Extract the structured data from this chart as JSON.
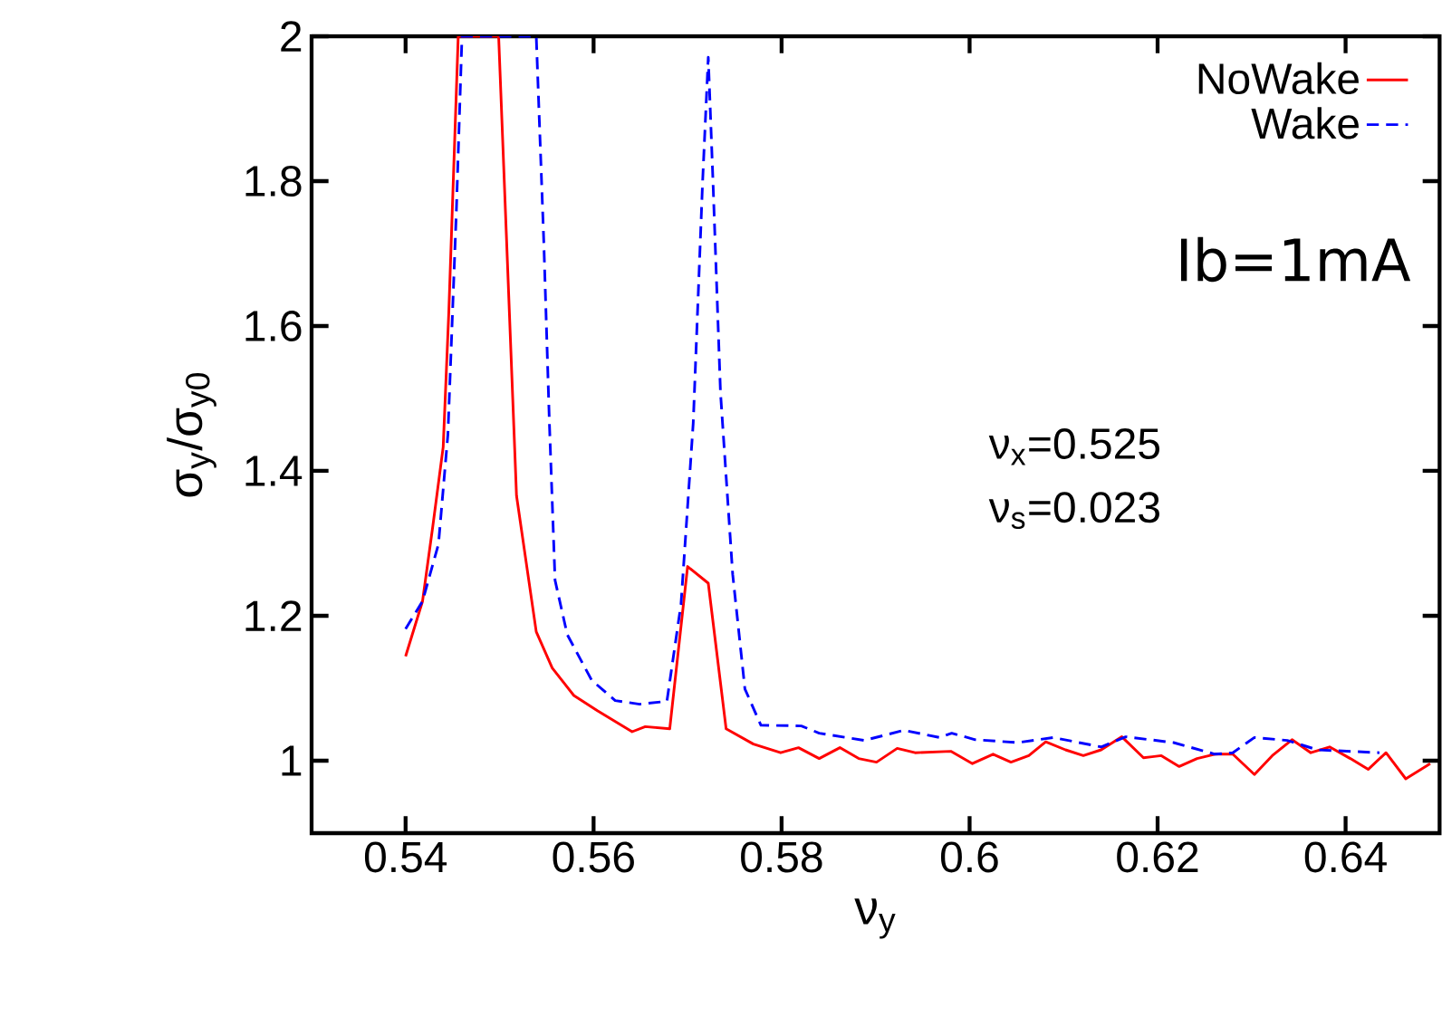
{
  "chart_data": {
    "type": "line",
    "xlabel": "ν$_{y}$",
    "ylabel": "σ$_{y}$/σ$_{y0}$",
    "xlim": [
      0.53,
      0.65
    ],
    "ylim": [
      0.9,
      2
    ],
    "xticks": [
      0.54,
      0.56,
      0.58,
      0.6,
      0.62,
      0.64
    ],
    "yticks": [
      1,
      1.2,
      1.4,
      1.6,
      1.8,
      2
    ],
    "legend": "top right",
    "grid": false,
    "marker": "none",
    "annotations": [
      "Ib=1mA",
      "ν$_{x}$=0.525",
      "ν$_{s}$=0.023"
    ],
    "series": [
      {
        "name": "NoWake",
        "color": "#ff0000",
        "line_style": "solid",
        "x": [
          0.54,
          0.5418,
          0.5429,
          0.544,
          0.5446,
          0.5456,
          0.5499,
          0.5518,
          0.5539,
          0.5556,
          0.5579,
          0.5604,
          0.5641,
          0.5655,
          0.5681,
          0.57,
          0.5722,
          0.5741,
          0.577,
          0.5799,
          0.5818,
          0.584,
          0.5862,
          0.5882,
          0.5901,
          0.5923,
          0.5942,
          0.598,
          0.6003,
          0.6025,
          0.6044,
          0.6063,
          0.6081,
          0.6102,
          0.6121,
          0.614,
          0.6162,
          0.6185,
          0.6204,
          0.6223,
          0.6242,
          0.6261,
          0.628,
          0.6303,
          0.6322,
          0.6343,
          0.6363,
          0.6383,
          0.6405,
          0.6424,
          0.6443,
          0.6464,
          0.649
        ],
        "values": [
          1.144,
          1.22,
          1.324,
          1.433,
          1.62,
          2.0,
          2.0,
          1.366,
          1.178,
          1.128,
          1.09,
          1.069,
          1.04,
          1.047,
          1.044,
          1.268,
          1.245,
          1.044,
          1.023,
          1.011,
          1.018,
          1.003,
          1.018,
          1.003,
          0.998,
          1.017,
          1.011,
          1.013,
          0.996,
          1.009,
          0.998,
          1.007,
          1.026,
          1.015,
          1.007,
          1.015,
          1.033,
          1.004,
          1.007,
          0.992,
          1.003,
          1.009,
          1.009,
          0.981,
          1.007,
          1.029,
          1.011,
          1.019,
          1.003,
          0.988,
          1.011,
          0.975,
          0.996
        ]
      },
      {
        "name": "Wake",
        "color": "#0000ff",
        "line_style": "dashed",
        "x": [
          0.54,
          0.5418,
          0.5435,
          0.5445,
          0.5454,
          0.546,
          0.5539,
          0.5547,
          0.5553,
          0.5559,
          0.5572,
          0.5598,
          0.5623,
          0.5649,
          0.5678,
          0.5693,
          0.5706,
          0.5716,
          0.5722,
          0.5727,
          0.5735,
          0.5748,
          0.5761,
          0.5778,
          0.5821,
          0.584,
          0.5888,
          0.593,
          0.5968,
          0.5981,
          0.6006,
          0.6051,
          0.6089,
          0.614,
          0.6166,
          0.6217,
          0.6261,
          0.628,
          0.6303,
          0.6338,
          0.637,
          0.6436
        ],
        "values": [
          1.182,
          1.22,
          1.299,
          1.45,
          1.758,
          2.0,
          2.0,
          1.717,
          1.466,
          1.249,
          1.174,
          1.111,
          1.083,
          1.078,
          1.082,
          1.216,
          1.466,
          1.8,
          1.971,
          1.8,
          1.508,
          1.257,
          1.099,
          1.049,
          1.048,
          1.038,
          1.028,
          1.042,
          1.032,
          1.038,
          1.029,
          1.025,
          1.032,
          1.019,
          1.033,
          1.025,
          1.009,
          1.011,
          1.032,
          1.028,
          1.015,
          1.011
        ]
      }
    ]
  }
}
